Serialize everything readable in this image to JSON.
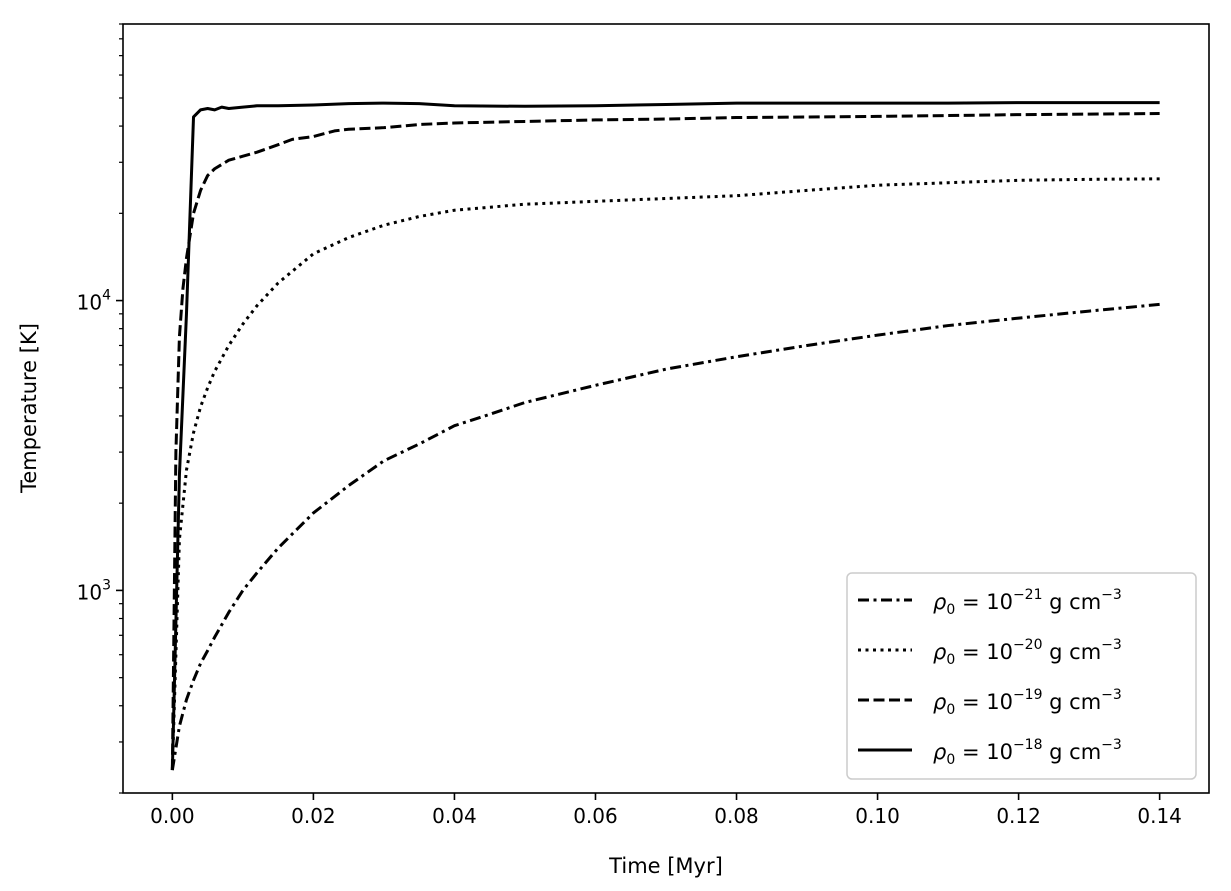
{
  "chart_data": {
    "type": "line",
    "title": "",
    "xlabel": "Time [Myr]",
    "ylabel": "Temperature [K]",
    "xlim": [
      -0.007,
      0.147
    ],
    "ylim": [
      200,
      90000
    ],
    "yscale": "log",
    "grid": false,
    "legend_position": "bottom-right",
    "x_ticks": [
      0.0,
      0.02,
      0.04,
      0.06,
      0.08,
      0.1,
      0.12,
      0.14
    ],
    "x_tick_labels": [
      "0.00",
      "0.02",
      "0.04",
      "0.06",
      "0.08",
      "0.10",
      "0.12",
      "0.14"
    ],
    "y_major_ticks": [
      {
        "value": 1000,
        "base": "10",
        "exp": "3"
      },
      {
        "value": 10000,
        "base": "10",
        "exp": "4"
      }
    ],
    "color": "#000000",
    "series": [
      {
        "dash": "dashdot",
        "legend": {
          "rho": "ρ",
          "sub": "0",
          "eq": " = 10",
          "exp": "−21",
          "unit": " g cm",
          "unit_exp": "−3"
        },
        "x": [
          0.0,
          0.001,
          0.002,
          0.003,
          0.004,
          0.005,
          0.006,
          0.008,
          0.01,
          0.012,
          0.015,
          0.02,
          0.025,
          0.03,
          0.035,
          0.04,
          0.045,
          0.05,
          0.06,
          0.07,
          0.08,
          0.09,
          0.1,
          0.11,
          0.12,
          0.13,
          0.14
        ],
        "y": [
          240,
          340,
          420,
          490,
          560,
          620,
          690,
          840,
          1000,
          1150,
          1400,
          1850,
          2300,
          2800,
          3200,
          3700,
          4050,
          4450,
          5100,
          5800,
          6400,
          7000,
          7600,
          8200,
          8700,
          9200,
          9700
        ]
      },
      {
        "dash": "dotted",
        "legend": {
          "rho": "ρ",
          "sub": "0",
          "eq": " = 10",
          "exp": "−20",
          "unit": " g cm",
          "unit_exp": "−3"
        },
        "x": [
          0.0,
          0.001,
          0.002,
          0.003,
          0.004,
          0.005,
          0.006,
          0.008,
          0.01,
          0.012,
          0.015,
          0.02,
          0.025,
          0.03,
          0.035,
          0.04,
          0.05,
          0.06,
          0.07,
          0.08,
          0.09,
          0.1,
          0.11,
          0.12,
          0.13,
          0.14
        ],
        "y": [
          240,
          1500,
          2600,
          3500,
          4300,
          5000,
          5700,
          7000,
          8300,
          9600,
          11500,
          14500,
          16500,
          18200,
          19500,
          20500,
          21500,
          22000,
          22500,
          23000,
          24000,
          25000,
          25500,
          26000,
          26200,
          26300
        ]
      },
      {
        "dash": "dashed",
        "legend": {
          "rho": "ρ",
          "sub": "0",
          "eq": " = 10",
          "exp": "−19",
          "unit": " g cm",
          "unit_exp": "−3"
        },
        "x": [
          0.0,
          0.0005,
          0.001,
          0.0015,
          0.002,
          0.003,
          0.004,
          0.005,
          0.006,
          0.008,
          0.01,
          0.012,
          0.015,
          0.017,
          0.02,
          0.023,
          0.025,
          0.03,
          0.035,
          0.04,
          0.05,
          0.06,
          0.07,
          0.08,
          0.09,
          0.1,
          0.11,
          0.12,
          0.13,
          0.14
        ],
        "y": [
          240,
          3000,
          7500,
          11000,
          14000,
          20000,
          24000,
          27000,
          28500,
          30500,
          31500,
          32500,
          34500,
          36000,
          36800,
          38500,
          39000,
          39500,
          40500,
          41000,
          41500,
          42000,
          42300,
          42800,
          43000,
          43200,
          43500,
          43800,
          44000,
          44200
        ]
      },
      {
        "dash": "solid",
        "legend": {
          "rho": "ρ",
          "sub": "0",
          "eq": " = 10",
          "exp": "−18",
          "unit": " g cm",
          "unit_exp": "−3"
        },
        "x": [
          0.0,
          0.001,
          0.002,
          0.003,
          0.004,
          0.005,
          0.006,
          0.007,
          0.008,
          0.01,
          0.012,
          0.015,
          0.02,
          0.025,
          0.03,
          0.035,
          0.04,
          0.05,
          0.06,
          0.07,
          0.08,
          0.09,
          0.1,
          0.11,
          0.12,
          0.13,
          0.14
        ],
        "y": [
          240,
          2500,
          9000,
          43000,
          45500,
          46000,
          45500,
          46500,
          46000,
          46500,
          47000,
          47000,
          47300,
          47800,
          48000,
          47800,
          47000,
          46800,
          47000,
          47500,
          48000,
          48000,
          48000,
          48000,
          48200,
          48200,
          48200
        ]
      }
    ]
  }
}
